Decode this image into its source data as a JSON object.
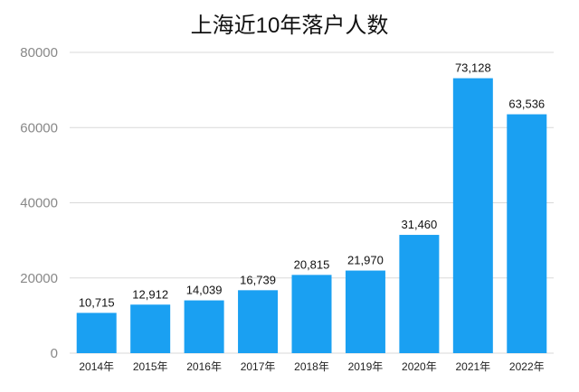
{
  "chart_data": {
    "type": "bar",
    "title": "上海近10年落户人数",
    "categories": [
      "2014年",
      "2015年",
      "2016年",
      "2017年",
      "2018年",
      "2019年",
      "2020年",
      "2021年",
      "2022年"
    ],
    "values": [
      10715,
      12912,
      14039,
      16739,
      20815,
      21970,
      31460,
      73128,
      63536
    ],
    "data_labels": [
      "10,715",
      "12,912",
      "14,039",
      "16,739",
      "20,815",
      "21,970",
      "31,460",
      "73,128",
      "63,536"
    ],
    "y_ticks": [
      "0",
      "20000",
      "40000",
      "60000",
      "80000"
    ],
    "ylim": [
      0,
      80000
    ],
    "grid": true,
    "xlabel": "",
    "ylabel": "",
    "bar_color": "#1aa0f2",
    "grid_color": "#d9d9d9"
  }
}
